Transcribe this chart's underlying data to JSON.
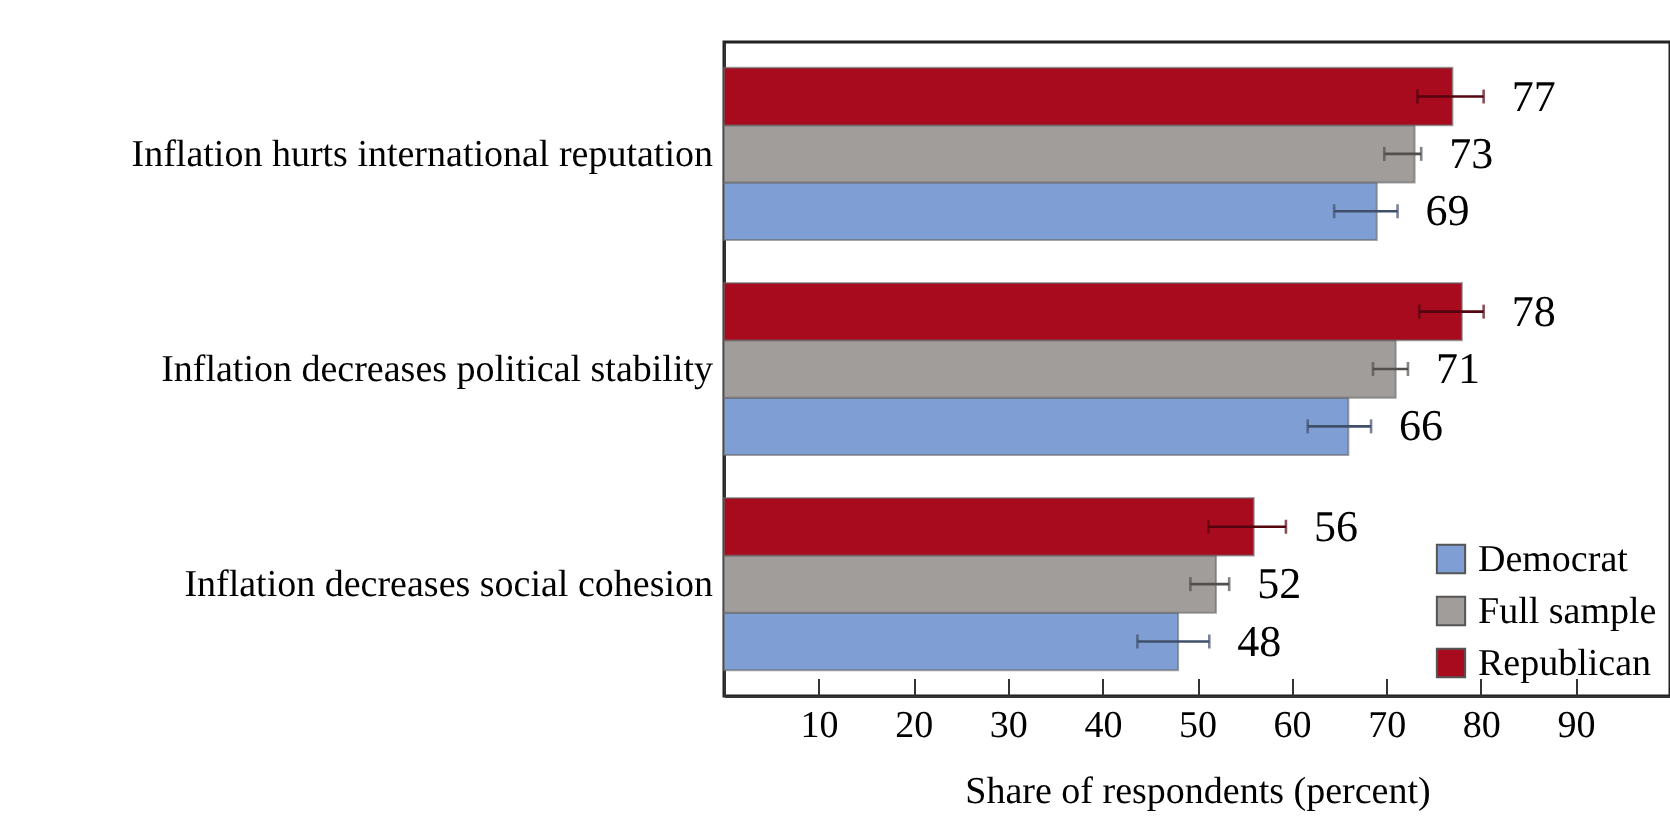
{
  "chart_data": {
    "type": "bar",
    "orientation": "horizontal",
    "xlabel": "Share of respondents (percent)",
    "categories": [
      "Inflation hurts international reputation",
      "Inflation decreases political stability",
      "Inflation decreases social cohesion"
    ],
    "series": [
      {
        "name": "Democrat",
        "color": "#7f9fd4",
        "values": [
          69,
          66,
          48
        ],
        "errors": [
          [
            64.5,
            71.2
          ],
          [
            61.7,
            68.4
          ],
          [
            43.7,
            51.3
          ]
        ]
      },
      {
        "name": "Full sample",
        "color": "#a09d9b",
        "values": [
          73,
          71,
          52
        ],
        "errors": [
          [
            69.8,
            73.7
          ],
          [
            68.6,
            72.3
          ],
          [
            49.3,
            53.4
          ]
        ]
      },
      {
        "name": "Republican",
        "color": "#a80a1e",
        "values": [
          77,
          78,
          56
        ],
        "errors": [
          [
            73.3,
            80.3
          ],
          [
            73.5,
            80.3
          ],
          [
            51.2,
            59.4
          ]
        ]
      }
    ],
    "xlim": [
      0,
      100
    ],
    "xticks": [
      10,
      20,
      30,
      40,
      50,
      60,
      70,
      80,
      90
    ],
    "data_labels": true,
    "legend": "bottom right",
    "grid": false
  }
}
